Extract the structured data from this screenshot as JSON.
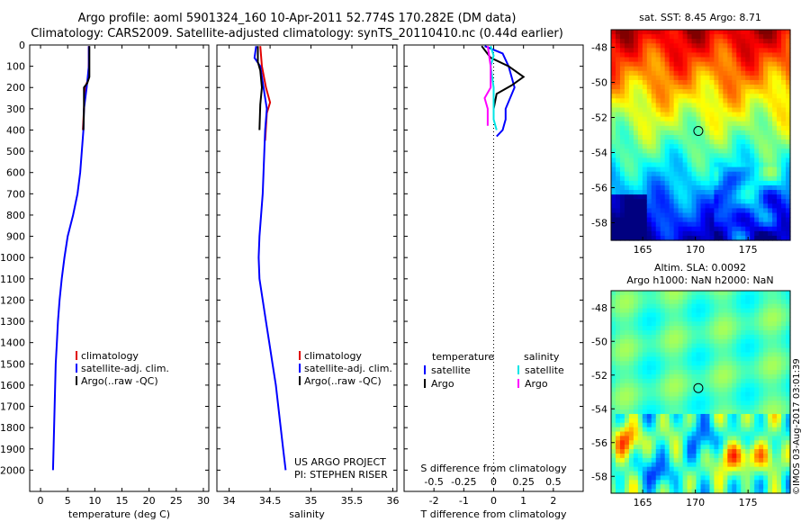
{
  "header": {
    "line1": "Argo profile: aoml 5901324_160 10-Apr-2011 52.774S 170.282E (DM data)",
    "line2": "Climatology: CARS2009. Satellite-adjusted climatology: synTS_20110410.nc (0.44d earlier)"
  },
  "map1": {
    "title": "sat. SST: 8.45 Argo: 8.71"
  },
  "map2": {
    "title1": "Altim. SLA: 0.0092",
    "title2": "Argo h1000: NaN h2000: NaN"
  },
  "watermark": "©IMOS 03-Aug-2017 03:01:39",
  "project": {
    "line1": "US ARGO PROJECT",
    "line2": "PI: STEPHEN RISER"
  },
  "colors": {
    "climatology": "#e00000",
    "satellite": "#0000ff",
    "argo": "#000000",
    "sal_satellite": "#00e5e5",
    "sal_argo": "#ff00ff"
  },
  "chart_data": [
    {
      "type": "line",
      "xlabel": "temperature (deg C)",
      "xticks": [
        0,
        5,
        10,
        15,
        20,
        25,
        30
      ],
      "xlim": [
        -2,
        31
      ],
      "ylim": [
        2100,
        0
      ],
      "yticks": [
        0,
        100,
        200,
        300,
        400,
        500,
        600,
        700,
        800,
        900,
        1000,
        1100,
        1200,
        1300,
        1400,
        1500,
        1600,
        1700,
        1800,
        1900,
        2000
      ],
      "legend": [
        "climatology",
        "satellite-adj. clim.",
        "Argo(..raw -QC)"
      ],
      "series": [
        {
          "name": "climatology",
          "color": "#e00000",
          "points": [
            [
              8.9,
              5
            ],
            [
              8.9,
              80
            ],
            [
              8.8,
              160
            ],
            [
              8.2,
              200
            ],
            [
              8.0,
              300
            ],
            [
              7.8,
              400
            ]
          ]
        },
        {
          "name": "satellite-adj. clim.",
          "color": "#0000ff",
          "points": [
            [
              8.9,
              5
            ],
            [
              8.9,
              100
            ],
            [
              8.5,
              200
            ],
            [
              8.0,
              300
            ],
            [
              7.9,
              400
            ],
            [
              7.6,
              500
            ],
            [
              7.3,
              600
            ],
            [
              6.8,
              700
            ],
            [
              6.0,
              800
            ],
            [
              5.0,
              900
            ],
            [
              4.4,
              1000
            ],
            [
              3.9,
              1100
            ],
            [
              3.5,
              1200
            ],
            [
              3.2,
              1300
            ],
            [
              3.0,
              1400
            ],
            [
              2.8,
              1500
            ],
            [
              2.7,
              1600
            ],
            [
              2.6,
              1700
            ],
            [
              2.5,
              1800
            ],
            [
              2.4,
              1900
            ],
            [
              2.3,
              2000
            ]
          ]
        },
        {
          "name": "Argo(..raw -QC)",
          "color": "#000000",
          "points": [
            [
              9.0,
              5
            ],
            [
              9.0,
              60
            ],
            [
              9.0,
              100
            ],
            [
              9.0,
              150
            ],
            [
              8.6,
              180
            ],
            [
              8.0,
              200
            ],
            [
              8.0,
              300
            ],
            [
              7.9,
              400
            ]
          ]
        }
      ]
    },
    {
      "type": "line",
      "xlabel": "salinity",
      "xticks": [
        34,
        34.5,
        35,
        35.5,
        36
      ],
      "xlim": [
        33.85,
        36.05
      ],
      "ylim": [
        2100,
        0
      ],
      "legend": [
        "climatology",
        "satellite-adj. clim.",
        "Argo(..raw -QC)"
      ],
      "series": [
        {
          "name": "climatology",
          "color": "#e00000",
          "points": [
            [
              34.38,
              5
            ],
            [
              34.4,
              100
            ],
            [
              34.45,
              200
            ],
            [
              34.5,
              270
            ],
            [
              34.46,
              320
            ],
            [
              34.44,
              450
            ]
          ]
        },
        {
          "name": "satellite-adj. clim.",
          "color": "#0000ff",
          "points": [
            [
              34.33,
              5
            ],
            [
              34.31,
              60
            ],
            [
              34.38,
              100
            ],
            [
              34.42,
              200
            ],
            [
              34.46,
              300
            ],
            [
              34.44,
              400
            ],
            [
              34.43,
              500
            ],
            [
              34.42,
              600
            ],
            [
              34.41,
              700
            ],
            [
              34.39,
              800
            ],
            [
              34.37,
              900
            ],
            [
              34.36,
              1000
            ],
            [
              34.37,
              1100
            ],
            [
              34.41,
              1200
            ],
            [
              34.45,
              1300
            ],
            [
              34.49,
              1400
            ],
            [
              34.53,
              1500
            ],
            [
              34.57,
              1600
            ],
            [
              34.6,
              1700
            ],
            [
              34.63,
              1800
            ],
            [
              34.66,
              1900
            ],
            [
              34.69,
              2000
            ]
          ]
        },
        {
          "name": "Argo(..raw -QC)",
          "color": "#000000",
          "points": [
            [
              34.35,
              5
            ],
            [
              34.35,
              80
            ],
            [
              34.38,
              120
            ],
            [
              34.4,
              200
            ],
            [
              34.38,
              280
            ],
            [
              34.37,
              400
            ]
          ]
        }
      ]
    },
    {
      "type": "line",
      "xlabel": "T difference from climatology",
      "xlabel2": "S difference from climatology",
      "xticks": [
        -2,
        -1,
        0,
        1,
        2
      ],
      "xticks2": [
        -0.5,
        -0.25,
        0,
        0.25,
        0.5
      ],
      "xlim": [
        -3,
        3
      ],
      "ylim": [
        2100,
        0
      ],
      "legend_headers": [
        "temperature",
        "salinity"
      ],
      "legend": [
        [
          "satellite",
          "Argo"
        ],
        [
          "satellite",
          "Argo"
        ]
      ],
      "series": [
        {
          "name": "temperature satellite",
          "color": "#0000ff",
          "points": [
            [
              -0.3,
              5
            ],
            [
              0.3,
              40
            ],
            [
              0.5,
              100
            ],
            [
              0.6,
              150
            ],
            [
              0.7,
              200
            ],
            [
              0.4,
              300
            ],
            [
              0.4,
              350
            ],
            [
              0.3,
              400
            ],
            [
              0.1,
              430
            ]
          ]
        },
        {
          "name": "temperature Argo",
          "color": "#000000",
          "points": [
            [
              -0.4,
              5
            ],
            [
              -0.1,
              60
            ],
            [
              0.5,
              100
            ],
            [
              1.0,
              150
            ],
            [
              0.6,
              190
            ],
            [
              0.1,
              230
            ],
            [
              0.0,
              300
            ]
          ]
        },
        {
          "name": "salinity satellite",
          "color": "#00e5e5",
          "points": [
            [
              -0.1,
              5
            ],
            [
              0.0,
              50
            ],
            [
              -0.1,
              100
            ],
            [
              0.0,
              200
            ],
            [
              0.0,
              300
            ],
            [
              0.0,
              350
            ],
            [
              0.1,
              400
            ]
          ]
        },
        {
          "name": "salinity Argo",
          "color": "#ff00ff",
          "points": [
            [
              -0.2,
              5
            ],
            [
              -0.1,
              100
            ],
            [
              -0.1,
              200
            ],
            [
              -0.3,
              250
            ],
            [
              -0.2,
              300
            ],
            [
              -0.2,
              380
            ]
          ]
        }
      ]
    },
    {
      "type": "heatmap",
      "title": "sat. SST: 8.45 Argo: 8.71",
      "xticks": [
        165,
        170,
        175
      ],
      "yticks": [
        -48,
        -50,
        -52,
        -54,
        -56,
        -58
      ],
      "xlim": [
        162,
        179
      ],
      "ylim": [
        -59,
        -47
      ],
      "marker": [
        170.28,
        -52.77
      ]
    },
    {
      "type": "heatmap",
      "title": "Altim. SLA: 0.0092",
      "xticks": [
        165,
        170,
        175
      ],
      "yticks": [
        -48,
        -50,
        -52,
        -54,
        -56,
        -58
      ],
      "xlim": [
        162,
        179
      ],
      "ylim": [
        -59,
        -47
      ],
      "marker": [
        170.28,
        -52.77
      ]
    }
  ]
}
